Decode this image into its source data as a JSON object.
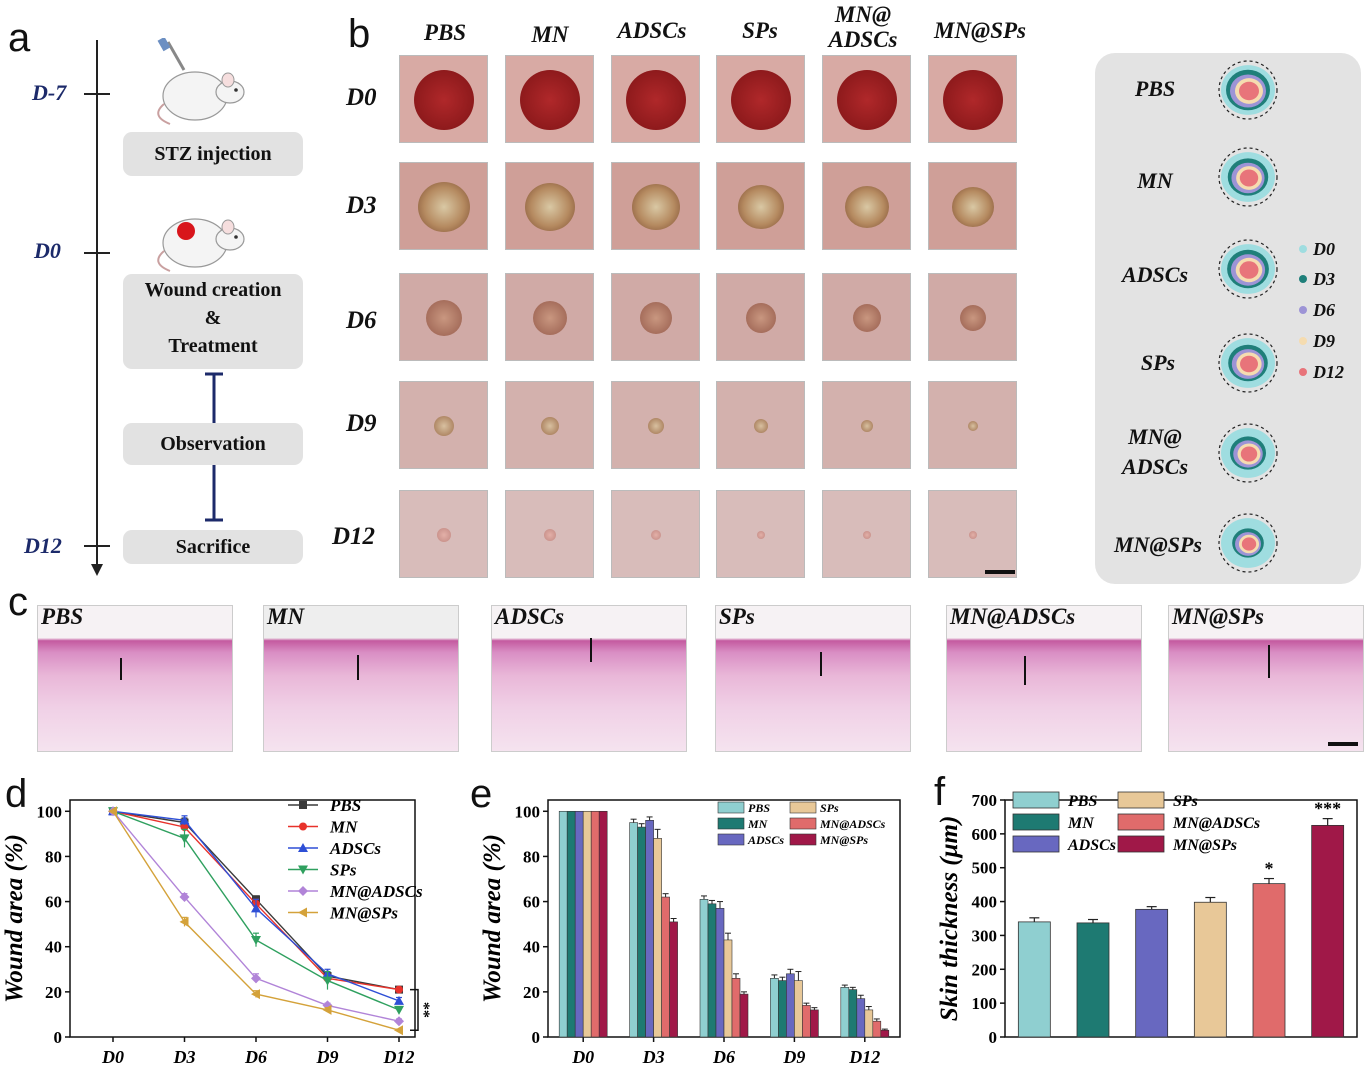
{
  "panels": {
    "a": "a",
    "b": "b",
    "c": "c",
    "d": "d",
    "e": "e",
    "f": "f"
  },
  "timeline": {
    "days": [
      "D-7",
      "D0",
      "D12"
    ],
    "steps": [
      "STZ injection",
      "Wound creation",
      "&",
      "Treatment",
      "Observation",
      "Sacrifice"
    ]
  },
  "groups": [
    "PBS",
    "MN",
    "ADSCs",
    "SPs",
    "MN@ADSCs",
    "MN@SPs"
  ],
  "photo_headers": [
    "PBS",
    "MN",
    "ADSCs",
    "SPs",
    "MN@",
    "ADSCs",
    "MN@SPs"
  ],
  "photo_rows": [
    "D0",
    "D3",
    "D6",
    "D9",
    "D12"
  ],
  "trace_legend": {
    "groups": [
      "PBS",
      "MN",
      "ADSCs",
      "SPs",
      "MN@",
      "ADSCs",
      "MN@SPs"
    ],
    "days": [
      "D0",
      "D3",
      "D6",
      "D9",
      "D12"
    ],
    "day_colors": [
      "#9fdde0",
      "#1f7f7a",
      "#9d94d6",
      "#f5dcb0",
      "#e8747a"
    ]
  },
  "histology_labels": [
    "PBS",
    "MN",
    "ADSCs",
    "SPs",
    "MN@ADSCs",
    "MN@SPs"
  ],
  "chart_data": [
    {
      "type": "line",
      "panel": "d",
      "x": [
        "D0",
        "D3",
        "D6",
        "D9",
        "D12"
      ],
      "ylabel": "Wound area (%)",
      "ylim": [
        0,
        110
      ],
      "yticks": [
        0,
        20,
        40,
        60,
        80,
        100
      ],
      "series": [
        {
          "name": "PBS",
          "color": "#3a3a3a",
          "marker": "square",
          "values": [
            100,
            95,
            61,
            27,
            21
          ],
          "err": [
            0,
            2,
            1.5,
            1.5,
            1
          ]
        },
        {
          "name": "MN",
          "color": "#e8322b",
          "marker": "circle",
          "values": [
            100,
            93,
            59,
            26,
            21
          ],
          "err": [
            0,
            2,
            2,
            2,
            1
          ]
        },
        {
          "name": "ADSCs",
          "color": "#2e4fd6",
          "marker": "triangle-up",
          "values": [
            100,
            96,
            57,
            28,
            16
          ],
          "err": [
            0,
            2,
            4,
            2,
            1.5
          ]
        },
        {
          "name": "SPs",
          "color": "#2fa05f",
          "marker": "triangle-down",
          "values": [
            100,
            88,
            43,
            25,
            12
          ],
          "err": [
            0,
            4,
            3,
            4,
            1.5
          ]
        },
        {
          "name": "MN@ADSCs",
          "color": "#b184d8",
          "marker": "diamond",
          "values": [
            100,
            62,
            26,
            14,
            7
          ],
          "err": [
            0,
            1.5,
            2,
            1,
            1
          ]
        },
        {
          "name": "MN@SPs",
          "color": "#d4a23a",
          "marker": "triangle-left",
          "values": [
            100,
            51,
            19,
            12,
            3
          ],
          "err": [
            0,
            2,
            1.5,
            1,
            0.5
          ]
        }
      ],
      "annotation": "**"
    },
    {
      "type": "bar",
      "panel": "e",
      "categories": [
        "D0",
        "D3",
        "D6",
        "D9",
        "D12"
      ],
      "ylabel": "Wound area (%)",
      "ylim": [
        0,
        110
      ],
      "yticks": [
        0,
        20,
        40,
        60,
        80,
        100
      ],
      "series": [
        {
          "name": "PBS",
          "color": "#8fcfd0",
          "values": [
            100,
            95,
            61,
            26,
            22
          ],
          "err": [
            0,
            1.5,
            1.5,
            1.5,
            1
          ]
        },
        {
          "name": "MN",
          "color": "#1e7a72",
          "values": [
            100,
            93,
            59,
            25,
            21
          ],
          "err": [
            0,
            1.5,
            1.5,
            1.5,
            1
          ]
        },
        {
          "name": "ADSCs",
          "color": "#6868c0",
          "values": [
            100,
            96,
            57,
            28,
            17
          ],
          "err": [
            0,
            1.5,
            3,
            2,
            1.5
          ]
        },
        {
          "name": "SPs",
          "color": "#e8c898",
          "values": [
            100,
            88,
            43,
            25,
            12
          ],
          "err": [
            0,
            4,
            3,
            4,
            1.5
          ]
        },
        {
          "name": "MN@ADSCs",
          "color": "#e06b6b",
          "values": [
            100,
            62,
            26,
            14,
            7
          ],
          "err": [
            0,
            1.5,
            2,
            1,
            1
          ]
        },
        {
          "name": "MN@SPs",
          "color": "#a01848",
          "values": [
            100,
            51,
            19,
            12,
            3
          ],
          "err": [
            0,
            1.5,
            1,
            1,
            0.5
          ]
        }
      ]
    },
    {
      "type": "bar",
      "panel": "f",
      "categories": [
        "PBS",
        "MN",
        "ADSCs",
        "SPs",
        "MN@ADSCs",
        "MN@SPs"
      ],
      "ylabel": "Skin thickness (μm)",
      "ylim": [
        0,
        700
      ],
      "yticks": [
        0,
        100,
        200,
        300,
        400,
        500,
        600,
        700
      ],
      "values": [
        340,
        337,
        377,
        398,
        453,
        625
      ],
      "err": [
        12,
        10,
        8,
        14,
        15,
        20
      ],
      "colors": [
        "#8fcfd0",
        "#1e7a72",
        "#6868c0",
        "#e8c898",
        "#e06b6b",
        "#a01848"
      ],
      "significance": [
        "",
        "",
        "",
        "",
        "*",
        "***"
      ]
    }
  ]
}
